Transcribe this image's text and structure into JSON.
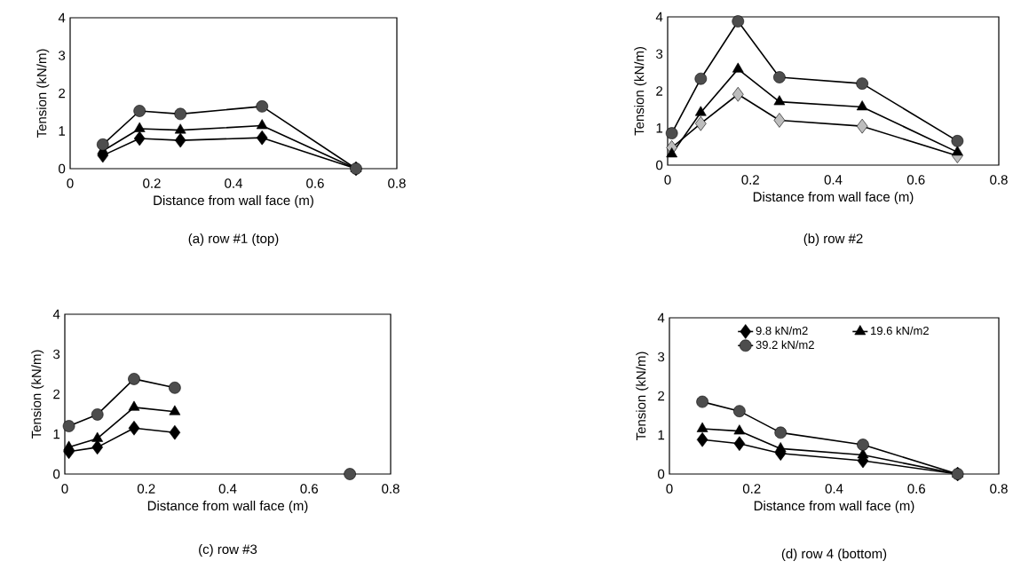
{
  "chart_data": [
    {
      "type": "line",
      "xlabel": "Distance from wall face (m)",
      "ylabel": "Tension (kN/m)",
      "annotations": [
        "(a) row #1 (top)"
      ],
      "x": [
        0.08,
        0.17,
        0.27,
        0.47,
        0.7
      ],
      "xlim": [
        0,
        0.8
      ],
      "ylim": [
        0,
        4
      ],
      "xticks": [
        0,
        0.2,
        0.4,
        0.6,
        0.8
      ],
      "yticks": [
        0,
        1,
        2,
        3,
        4
      ],
      "series": [
        {
          "marker": "diamond",
          "color": "#000000",
          "values": [
            0.35,
            0.8,
            0.75,
            0.82,
            0
          ]
        },
        {
          "marker": "triangle",
          "color": "#000000",
          "values": [
            0.47,
            1.06,
            1.02,
            1.14,
            0
          ]
        },
        {
          "marker": "circle",
          "color": "#4d4d4d",
          "values": [
            0.64,
            1.53,
            1.45,
            1.65,
            0
          ]
        }
      ]
    },
    {
      "type": "line",
      "xlabel": "Distance from wall face (m)",
      "ylabel": "Tension (kN/m)",
      "annotations": [
        "(b) row #2"
      ],
      "x": [
        0.01,
        0.08,
        0.17,
        0.27,
        0.47,
        0.7
      ],
      "xlim": [
        0,
        0.8
      ],
      "ylim": [
        0,
        4
      ],
      "xticks": [
        0,
        0.2,
        0.4,
        0.6,
        0.8
      ],
      "yticks": [
        0,
        1,
        2,
        3,
        4
      ],
      "series": [
        {
          "marker": "diamond",
          "color": "#bdbdbd",
          "values": [
            0.47,
            1.12,
            1.91,
            1.21,
            1.05,
            0.25
          ]
        },
        {
          "marker": "triangle",
          "color": "#000000",
          "values": [
            0.3,
            1.42,
            2.59,
            1.71,
            1.57,
            0.35
          ]
        },
        {
          "marker": "circle",
          "color": "#4d4d4d",
          "values": [
            0.86,
            2.33,
            3.88,
            2.37,
            2.2,
            0.65
          ]
        }
      ]
    },
    {
      "type": "line",
      "xlabel": "Distance from wall face (m)",
      "ylabel": "Tension (kN/m)",
      "annotations": [
        "(c) row #3"
      ],
      "x": [
        0.01,
        0.08,
        0.17,
        0.27,
        0.47,
        0.7
      ],
      "xlim": [
        0,
        0.8
      ],
      "ylim": [
        0,
        4
      ],
      "xticks": [
        0,
        0.2,
        0.4,
        0.6,
        0.8
      ],
      "yticks": [
        0,
        1,
        2,
        3,
        4
      ],
      "series": [
        {
          "marker": "diamond",
          "color": "#000000",
          "values": [
            0.56,
            0.67,
            1.15,
            1.04,
            null,
            null
          ]
        },
        {
          "marker": "triangle",
          "color": "#000000",
          "values": [
            0.67,
            0.89,
            1.67,
            1.56,
            null,
            null
          ]
        },
        {
          "marker": "circle",
          "color": "#4d4d4d",
          "values": [
            1.2,
            1.49,
            2.38,
            2.16,
            null,
            0
          ]
        }
      ]
    },
    {
      "type": "line",
      "xlabel": "Distance from wall face (m)",
      "ylabel": "Tension (kN/m)",
      "annotations": [
        "(d) row 4 (bottom)"
      ],
      "x": [
        0.08,
        0.17,
        0.27,
        0.47,
        0.7
      ],
      "xlim": [
        0,
        0.8
      ],
      "ylim": [
        0,
        4
      ],
      "xticks": [
        0,
        0.2,
        0.4,
        0.6,
        0.8
      ],
      "yticks": [
        0,
        1,
        2,
        3,
        4
      ],
      "legend": "top",
      "series": [
        {
          "name": "9.8 kN/m2",
          "marker": "diamond",
          "color": "#000000",
          "values": [
            0.88,
            0.78,
            0.53,
            0.34,
            0
          ]
        },
        {
          "name": "19.6 kN/m2",
          "marker": "triangle",
          "color": "#000000",
          "values": [
            1.16,
            1.1,
            0.65,
            0.49,
            0
          ]
        },
        {
          "name": "39.2 kN/m2",
          "marker": "circle",
          "color": "#4d4d4d",
          "values": [
            1.85,
            1.61,
            1.06,
            0.75,
            0
          ]
        }
      ]
    }
  ]
}
